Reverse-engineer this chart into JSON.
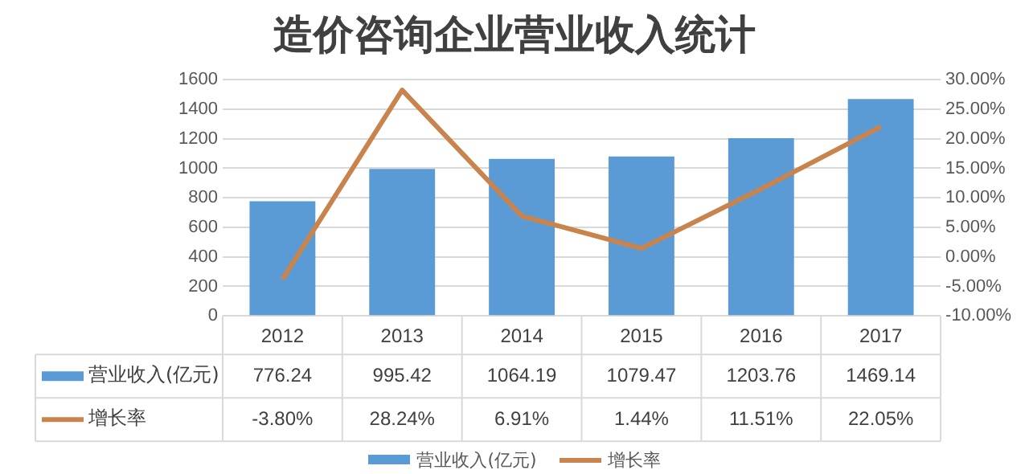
{
  "chart_data": {
    "type": "bar",
    "title": "造价咨询企业营业收入统计",
    "categories": [
      "2012",
      "2013",
      "2014",
      "2015",
      "2016",
      "2017"
    ],
    "series": [
      {
        "name": "营业收入(亿元)",
        "color": "#5b9bd5",
        "values": [
          776.24,
          995.42,
          1064.19,
          1079.47,
          1203.76,
          1469.14
        ],
        "value_labels": [
          "776.24",
          "995.42",
          "1064.19",
          "1079.47",
          "1203.76",
          "1469.14"
        ]
      },
      {
        "name": "增长率",
        "type": "line",
        "axis": "y2",
        "color": "#c8844c",
        "values": [
          -3.8,
          28.24,
          6.91,
          1.44,
          11.51,
          22.05
        ],
        "value_labels": [
          "-3.80%",
          "28.24%",
          "6.91%",
          "1.44%",
          "11.51%",
          "22.05%"
        ]
      }
    ],
    "ylim": [
      0,
      1600
    ],
    "yticks": [
      0,
      200,
      400,
      600,
      800,
      1000,
      1200,
      1400,
      1600
    ],
    "y2lim": [
      -10,
      30
    ],
    "y2ticks": [
      {
        "value": -10,
        "label": "-10.00%"
      },
      {
        "value": -5,
        "label": "-5.00%"
      },
      {
        "value": 0,
        "label": "0.00%"
      },
      {
        "value": 5,
        "label": "5.00%"
      },
      {
        "value": 10,
        "label": "10.00%"
      },
      {
        "value": 15,
        "label": "15.00%"
      },
      {
        "value": 20,
        "label": "20.00%"
      },
      {
        "value": 25,
        "label": "25.00%"
      },
      {
        "value": 30,
        "label": "30.00%"
      }
    ],
    "grid": "y",
    "legend": "bottom",
    "marker": "none",
    "line_style": "solid"
  }
}
